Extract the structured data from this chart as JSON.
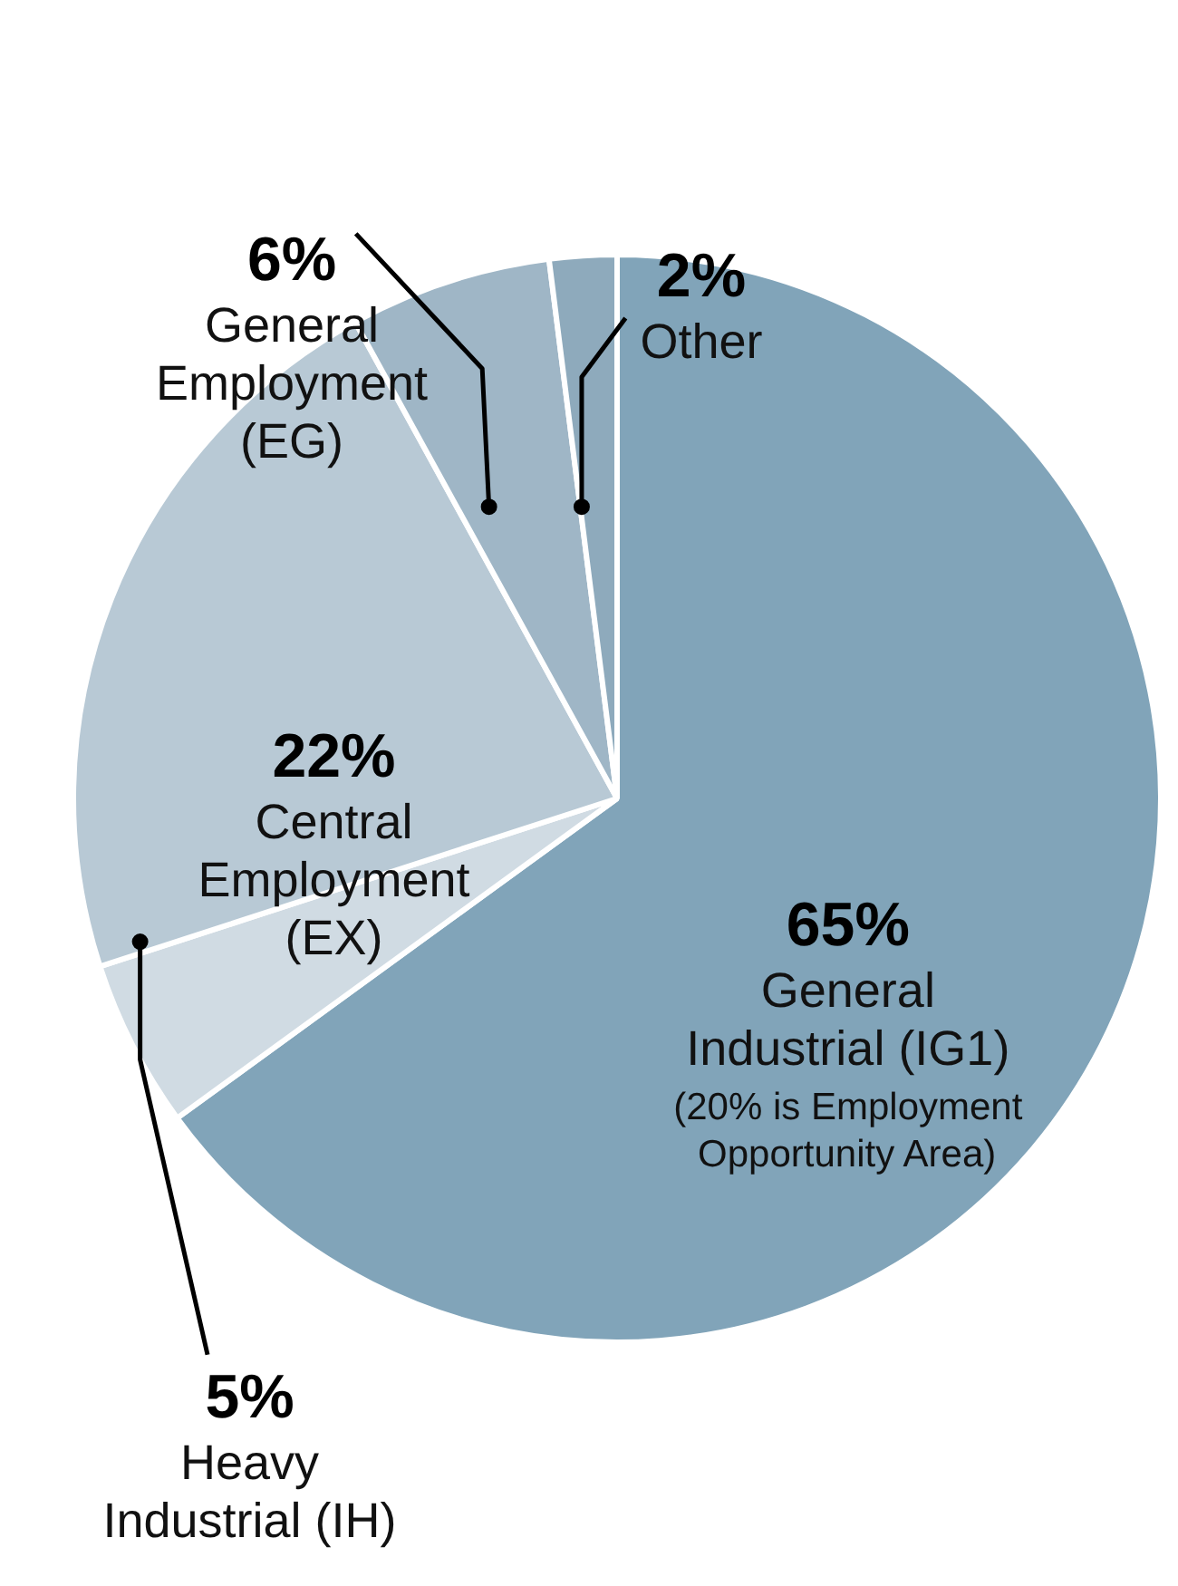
{
  "chart_data": {
    "type": "pie",
    "categories": [
      "General Industrial (IG1)",
      "Heavy Industrial (IH)",
      "Central Employment (EX)",
      "General Employment (EG)",
      "Other"
    ],
    "values": [
      65,
      5,
      22,
      6,
      2
    ],
    "value_labels": [
      "65%",
      "5%",
      "22%",
      "6%",
      "2%"
    ],
    "colors": [
      "#81a4b9",
      "#d0dbe3",
      "#b8c9d5",
      "#9fb6c6",
      "#8eaabc"
    ],
    "annotations": [
      "(20% is Employment Opportunity Area)"
    ]
  }
}
